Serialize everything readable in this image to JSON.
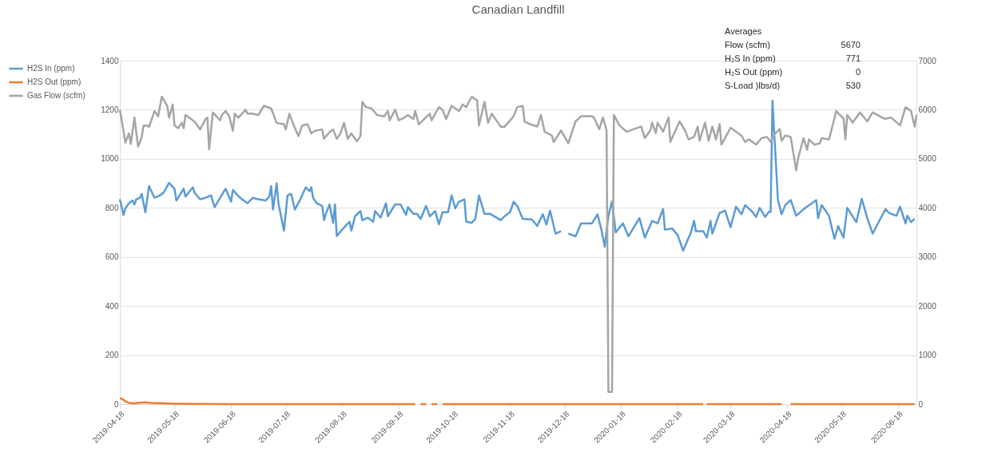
{
  "chart_data": {
    "type": "line",
    "title": "Canadian Landfill",
    "xlim": [
      "2019-04-18",
      "2020-06-28"
    ],
    "xticks": [
      "2019-04-18",
      "2019-05-18",
      "2019-06-18",
      "2019-07-18",
      "2019-08-18",
      "2019-09-18",
      "2019-10-18",
      "2019-11-18",
      "2019-12-18",
      "2020-01-18",
      "2020-02-18",
      "2020-03-18",
      "2020-04-18",
      "2020-05-18",
      "2020-06-18"
    ],
    "ylim": [
      0,
      1400
    ],
    "yticks": [
      0,
      200,
      400,
      600,
      800,
      1000,
      1200,
      1400
    ],
    "y2lim": [
      0,
      7000
    ],
    "y2ticks": [
      0,
      1000,
      2000,
      3000,
      4000,
      5000,
      6000,
      7000
    ],
    "grid": "y",
    "legend": "left",
    "marker": "none",
    "line_style": "solid",
    "annotations": [
      "Averages",
      "Flow (scfm)",
      "5670",
      "H₂S In (ppm)",
      "771",
      "H₂S  Out (ppm)",
      "0",
      "S-Load )lbs/d)",
      "530"
    ],
    "series": [
      {
        "name": "H2S In (ppm)",
        "color": "#5b9bd5",
        "axis": "y",
        "x": [
          "2019-04-18",
          "2019-04-20",
          "2019-04-21",
          "2019-04-23",
          "2019-04-25",
          "2019-04-26",
          "2019-04-27",
          "2019-04-29",
          "2019-04-30",
          "2019-05-02",
          "2019-05-04",
          "2019-05-07",
          "2019-05-10",
          "2019-05-12",
          "2019-05-15",
          "2019-05-18",
          "2019-05-19",
          "2019-05-23",
          "2019-05-24",
          "2019-05-28",
          "2019-05-29",
          "2019-06-01",
          "2019-06-04",
          "2019-06-07",
          "2019-06-09",
          "2019-06-12",
          "2019-06-15",
          "2019-06-18",
          "2019-06-19",
          "2019-06-21",
          "2019-06-23",
          "2019-06-27",
          "2019-06-30",
          "2019-07-03",
          "2019-07-07",
          "2019-07-09",
          "2019-07-10",
          "2019-07-11",
          "2019-07-13",
          "2019-07-14",
          "2019-07-17",
          "2019-07-19",
          "2019-07-21",
          "2019-07-23",
          "2019-07-26",
          "2019-07-29",
          "2019-07-31",
          "2019-08-01",
          "2019-08-02",
          "2019-08-04",
          "2019-08-07",
          "2019-08-08",
          "2019-08-09",
          "2019-08-11",
          "2019-08-13",
          "2019-08-14",
          "2019-08-15",
          "2019-08-18",
          "2019-08-22",
          "2019-08-23",
          "2019-08-25",
          "2019-08-28",
          "2019-08-29",
          "2019-09-01",
          "2019-09-04",
          "2019-09-05",
          "2019-09-08",
          "2019-09-11",
          "2019-09-12",
          "2019-09-16",
          "2019-09-19",
          "2019-09-22",
          "2019-09-23",
          "2019-09-26",
          "2019-09-28",
          "2019-09-30",
          "2019-10-03",
          "2019-10-05",
          "2019-10-08",
          "2019-10-10",
          "2019-10-12",
          "2019-10-15",
          "2019-10-17",
          "2019-10-19",
          "2019-10-21",
          "2019-10-24",
          "2019-10-25",
          "2019-10-28",
          "2019-10-30",
          "2019-11-01",
          "2019-11-04",
          "2019-11-07",
          "2019-11-13",
          "2019-11-15",
          "2019-11-18",
          "2019-11-20",
          "2019-11-22",
          "2019-11-25",
          "2019-11-30",
          "2019-12-03",
          "2019-12-06",
          "2019-12-08",
          "2019-12-10",
          "2019-12-13",
          "2019-12-16",
          "2019-12-18",
          "2019-12-20",
          "2019-12-24",
          "2019-12-27",
          "2020-01-02",
          "2020-01-05",
          "2020-01-07",
          "2020-01-09",
          "2020-01-11",
          "2020-01-13",
          "2020-01-15",
          "2020-01-19",
          "2020-01-22",
          "2020-01-28",
          "2020-01-31",
          "2020-02-04",
          "2020-02-07",
          "2020-02-10",
          "2020-02-11",
          "2020-02-15",
          "2020-02-18",
          "2020-02-21",
          "2020-02-25",
          "2020-02-27",
          "2020-02-28",
          "2020-03-03",
          "2020-03-05",
          "2020-03-07",
          "2020-03-08",
          "2020-03-10",
          "2020-03-12",
          "2020-03-15",
          "2020-03-18",
          "2020-03-21",
          "2020-03-24",
          "2020-03-26",
          "2020-03-30",
          "2020-04-01",
          "2020-04-03",
          "2020-04-06",
          "2020-04-08",
          "2020-04-09",
          "2020-04-10",
          "2020-04-13",
          "2020-04-15",
          "2020-04-17",
          "2020-04-20",
          "2020-04-23",
          "2020-04-28",
          "2020-05-04",
          "2020-05-05",
          "2020-05-07",
          "2020-05-11",
          "2020-05-14",
          "2020-05-16",
          "2020-05-19",
          "2020-05-21",
          "2020-05-26",
          "2020-05-29",
          "2020-06-01",
          "2020-06-04",
          "2020-06-08",
          "2020-06-11",
          "2020-06-13",
          "2020-06-17",
          "2020-06-19",
          "2020-06-22",
          "2020-06-23",
          "2020-06-25",
          "2020-06-27"
        ],
        "values": [
          835,
          771,
          798,
          819,
          830,
          814,
          835,
          841,
          857,
          782,
          889,
          841,
          851,
          862,
          902,
          878,
          830,
          878,
          846,
          884,
          862,
          835,
          841,
          851,
          803,
          841,
          878,
          825,
          873,
          857,
          841,
          819,
          841,
          835,
          830,
          846,
          889,
          793,
          900,
          819,
          707,
          851,
          857,
          793,
          835,
          884,
          868,
          884,
          841,
          819,
          808,
          750,
          776,
          814,
          739,
          814,
          685,
          712,
          744,
          707,
          766,
          787,
          750,
          760,
          744,
          787,
          760,
          819,
          766,
          814,
          814,
          771,
          803,
          776,
          776,
          755,
          808,
          766,
          787,
          733,
          782,
          782,
          851,
          798,
          825,
          835,
          744,
          739,
          755,
          851,
          776,
          776,
          750,
          766,
          782,
          825,
          808,
          755,
          753,
          726,
          774,
          732,
          789,
          695,
          705,
          null,
          695,
          684,
          737,
          737,
          774,
          716,
          642,
          768,
          826,
          700,
          737,
          684,
          758,
          679,
          747,
          737,
          795,
          711,
          716,
          689,
          626,
          695,
          747,
          705,
          705,
          679,
          747,
          695,
          737,
          779,
          789,
          721,
          805,
          774,
          811,
          784,
          763,
          800,
          763,
          784,
          784,
          1237,
          832,
          774,
          811,
          832,
          768,
          800,
          832,
          758,
          811,
          768,
          674,
          726,
          679,
          800,
          742,
          837,
          758,
          695,
          753,
          795,
          779,
          768,
          805,
          737,
          768,
          742,
          756
        ]
      },
      {
        "name": "H2S Out (ppm)",
        "color": "#ed7d31",
        "axis": "y",
        "x": [
          "2019-04-18",
          "2019-04-19",
          "2019-04-21",
          "2019-04-23",
          "2019-04-26",
          "2019-04-29",
          "2019-05-02",
          "2019-05-05",
          "2019-05-08",
          "2019-05-13",
          "2019-05-18",
          "2019-05-28",
          "2019-06-17",
          "2019-09-27",
          "2019-09-28",
          "2019-09-30",
          "2019-10-03",
          "2019-10-04",
          "2019-10-06",
          "2019-10-09",
          "2019-10-10",
          "2019-10-12",
          "2020-03-03",
          "2020-03-04",
          "2020-03-05",
          "2020-04-15",
          "2020-04-17",
          "2020-04-20",
          "2020-06-27"
        ],
        "values": [
          25,
          22,
          12,
          5,
          3,
          6,
          7,
          5,
          4,
          3,
          2,
          1,
          0,
          0,
          null,
          0,
          0,
          null,
          0,
          0,
          null,
          0,
          0,
          null,
          0,
          0,
          null,
          0,
          0
        ]
      },
      {
        "name": "Gas Flow (scfm)",
        "color": "#a5a5a5",
        "axis": "y2",
        "x": [
          "2019-04-18",
          "2019-04-20",
          "2019-04-21",
          "2019-04-23",
          "2019-04-24",
          "2019-04-26",
          "2019-04-28",
          "2019-04-30",
          "2019-05-01",
          "2019-05-03",
          "2019-05-04",
          "2019-05-07",
          "2019-05-09",
          "2019-05-11",
          "2019-05-14",
          "2019-05-15",
          "2019-05-17",
          "2019-05-18",
          "2019-05-20",
          "2019-05-22",
          "2019-05-23",
          "2019-05-24",
          "2019-05-27",
          "2019-05-29",
          "2019-06-01",
          "2019-06-04",
          "2019-06-05",
          "2019-06-06",
          "2019-06-08",
          "2019-06-12",
          "2019-06-13",
          "2019-06-15",
          "2019-06-17",
          "2019-06-19",
          "2019-06-20",
          "2019-06-22",
          "2019-06-26",
          "2019-06-27",
          "2019-06-30",
          "2019-07-03",
          "2019-07-06",
          "2019-07-10",
          "2019-07-13",
          "2019-07-17",
          "2019-07-18",
          "2019-07-20",
          "2019-07-23",
          "2019-07-25",
          "2019-07-27",
          "2019-07-30",
          "2019-08-01",
          "2019-08-03",
          "2019-08-07",
          "2019-08-08",
          "2019-08-11",
          "2019-08-13",
          "2019-08-15",
          "2019-08-17",
          "2019-08-19",
          "2019-08-21",
          "2019-08-23",
          "2019-08-26",
          "2019-08-28",
          "2019-08-29",
          "2019-08-31",
          "2019-09-03",
          "2019-09-05",
          "2019-09-06",
          "2019-09-10",
          "2019-09-12",
          "2019-09-13",
          "2019-09-16",
          "2019-09-18",
          "2019-09-21",
          "2019-09-23",
          "2019-09-26",
          "2019-09-27",
          "2019-09-29",
          "2019-10-02",
          "2019-10-05",
          "2019-10-06",
          "2019-10-10",
          "2019-10-12",
          "2019-10-14",
          "2019-10-17",
          "2019-10-21",
          "2019-10-23",
          "2019-10-25",
          "2019-10-28",
          "2019-10-31",
          "2019-11-01",
          "2019-11-04",
          "2019-11-06",
          "2019-11-08",
          "2019-11-13",
          "2019-11-15",
          "2019-11-20",
          "2019-11-22",
          "2019-11-25",
          "2019-11-26",
          "2019-11-29",
          "2019-12-03",
          "2019-12-05",
          "2019-12-07",
          "2019-12-11",
          "2019-12-12",
          "2019-12-16",
          "2019-12-20",
          "2019-12-24",
          "2019-12-27",
          "2020-01-02",
          "2020-01-03",
          "2020-01-06",
          "2020-01-08",
          "2020-01-10",
          "2020-01-11",
          "2020-01-13",
          "2020-01-14",
          "2020-01-17",
          "2020-01-21",
          "2020-01-25",
          "2020-01-29",
          "2020-01-31",
          "2020-02-03",
          "2020-02-04",
          "2020-02-06",
          "2020-02-07",
          "2020-02-10",
          "2020-02-13",
          "2020-02-14",
          "2020-02-19",
          "2020-02-22",
          "2020-02-24",
          "2020-02-27",
          "2020-02-29",
          "2020-03-01",
          "2020-03-04",
          "2020-03-06",
          "2020-03-08",
          "2020-03-10",
          "2020-03-12",
          "2020-03-13",
          "2020-03-18",
          "2020-03-24",
          "2020-03-26",
          "2020-03-28",
          "2020-04-01",
          "2020-04-04",
          "2020-04-07",
          "2020-04-09",
          "2020-04-11",
          "2020-04-14",
          "2020-04-15",
          "2020-04-17",
          "2020-04-20",
          "2020-04-23",
          "2020-04-24",
          "2020-04-27",
          "2020-04-29",
          "2020-04-30",
          "2020-05-03",
          "2020-05-06",
          "2020-05-07",
          "2020-05-11",
          "2020-05-15",
          "2020-05-19",
          "2020-05-20",
          "2020-05-21",
          "2020-05-24",
          "2020-05-28",
          "2020-06-01",
          "2020-06-04",
          "2020-06-09",
          "2020-06-11",
          "2020-06-14",
          "2020-06-19",
          "2020-06-22",
          "2020-06-25",
          "2020-06-27",
          "2020-06-28"
        ],
        "values": [
          6000,
          5572,
          5330,
          5517,
          5303,
          5839,
          5249,
          5437,
          5678,
          5678,
          5651,
          5973,
          5866,
          6268,
          6080,
          5839,
          6107,
          5678,
          5625,
          5732,
          5625,
          5893,
          5812,
          5759,
          5598,
          5812,
          5839,
          5196,
          5946,
          5785,
          5893,
          5973,
          5866,
          5571,
          5920,
          5839,
          6000,
          5920,
          5920,
          5893,
          6080,
          6027,
          5732,
          5705,
          5598,
          5920,
          5625,
          5464,
          5678,
          5705,
          5517,
          5571,
          5598,
          5410,
          5544,
          5598,
          5410,
          5517,
          5732,
          5410,
          5517,
          5357,
          5464,
          6161,
          6054,
          6027,
          5946,
          5893,
          5866,
          5973,
          5785,
          6000,
          5785,
          5839,
          5893,
          5812,
          5973,
          5705,
          5812,
          5920,
          5785,
          6054,
          6000,
          5812,
          6080,
          5973,
          6107,
          6054,
          6268,
          6188,
          5678,
          6161,
          5732,
          5920,
          5651,
          5651,
          5866,
          6054,
          6080,
          5759,
          5705,
          5658,
          5895,
          5553,
          5474,
          5342,
          5579,
          5316,
          5763,
          5868,
          5868,
          5842,
          5605,
          5842,
          5579,
          250,
          250,
          5895,
          5684,
          5553,
          5605,
          5658,
          5421,
          5579,
          5737,
          5526,
          5737,
          5553,
          5842,
          5342,
          5763,
          5579,
          5395,
          5447,
          5658,
          5368,
          5737,
          5368,
          5658,
          5395,
          5711,
          5289,
          5632,
          5474,
          5342,
          5395,
          5289,
          5421,
          5447,
          5342,
          5500,
          5605,
          5368,
          5474,
          5447,
          4763,
          5000,
          5421,
          5184,
          5395,
          5289,
          5316,
          5421,
          5395,
          5974,
          5816,
          5395,
          5895,
          5737,
          5947,
          5763,
          5947,
          5842,
          5816,
          5842,
          5684,
          6053,
          5974,
          5658,
          5895
        ]
      }
    ]
  }
}
